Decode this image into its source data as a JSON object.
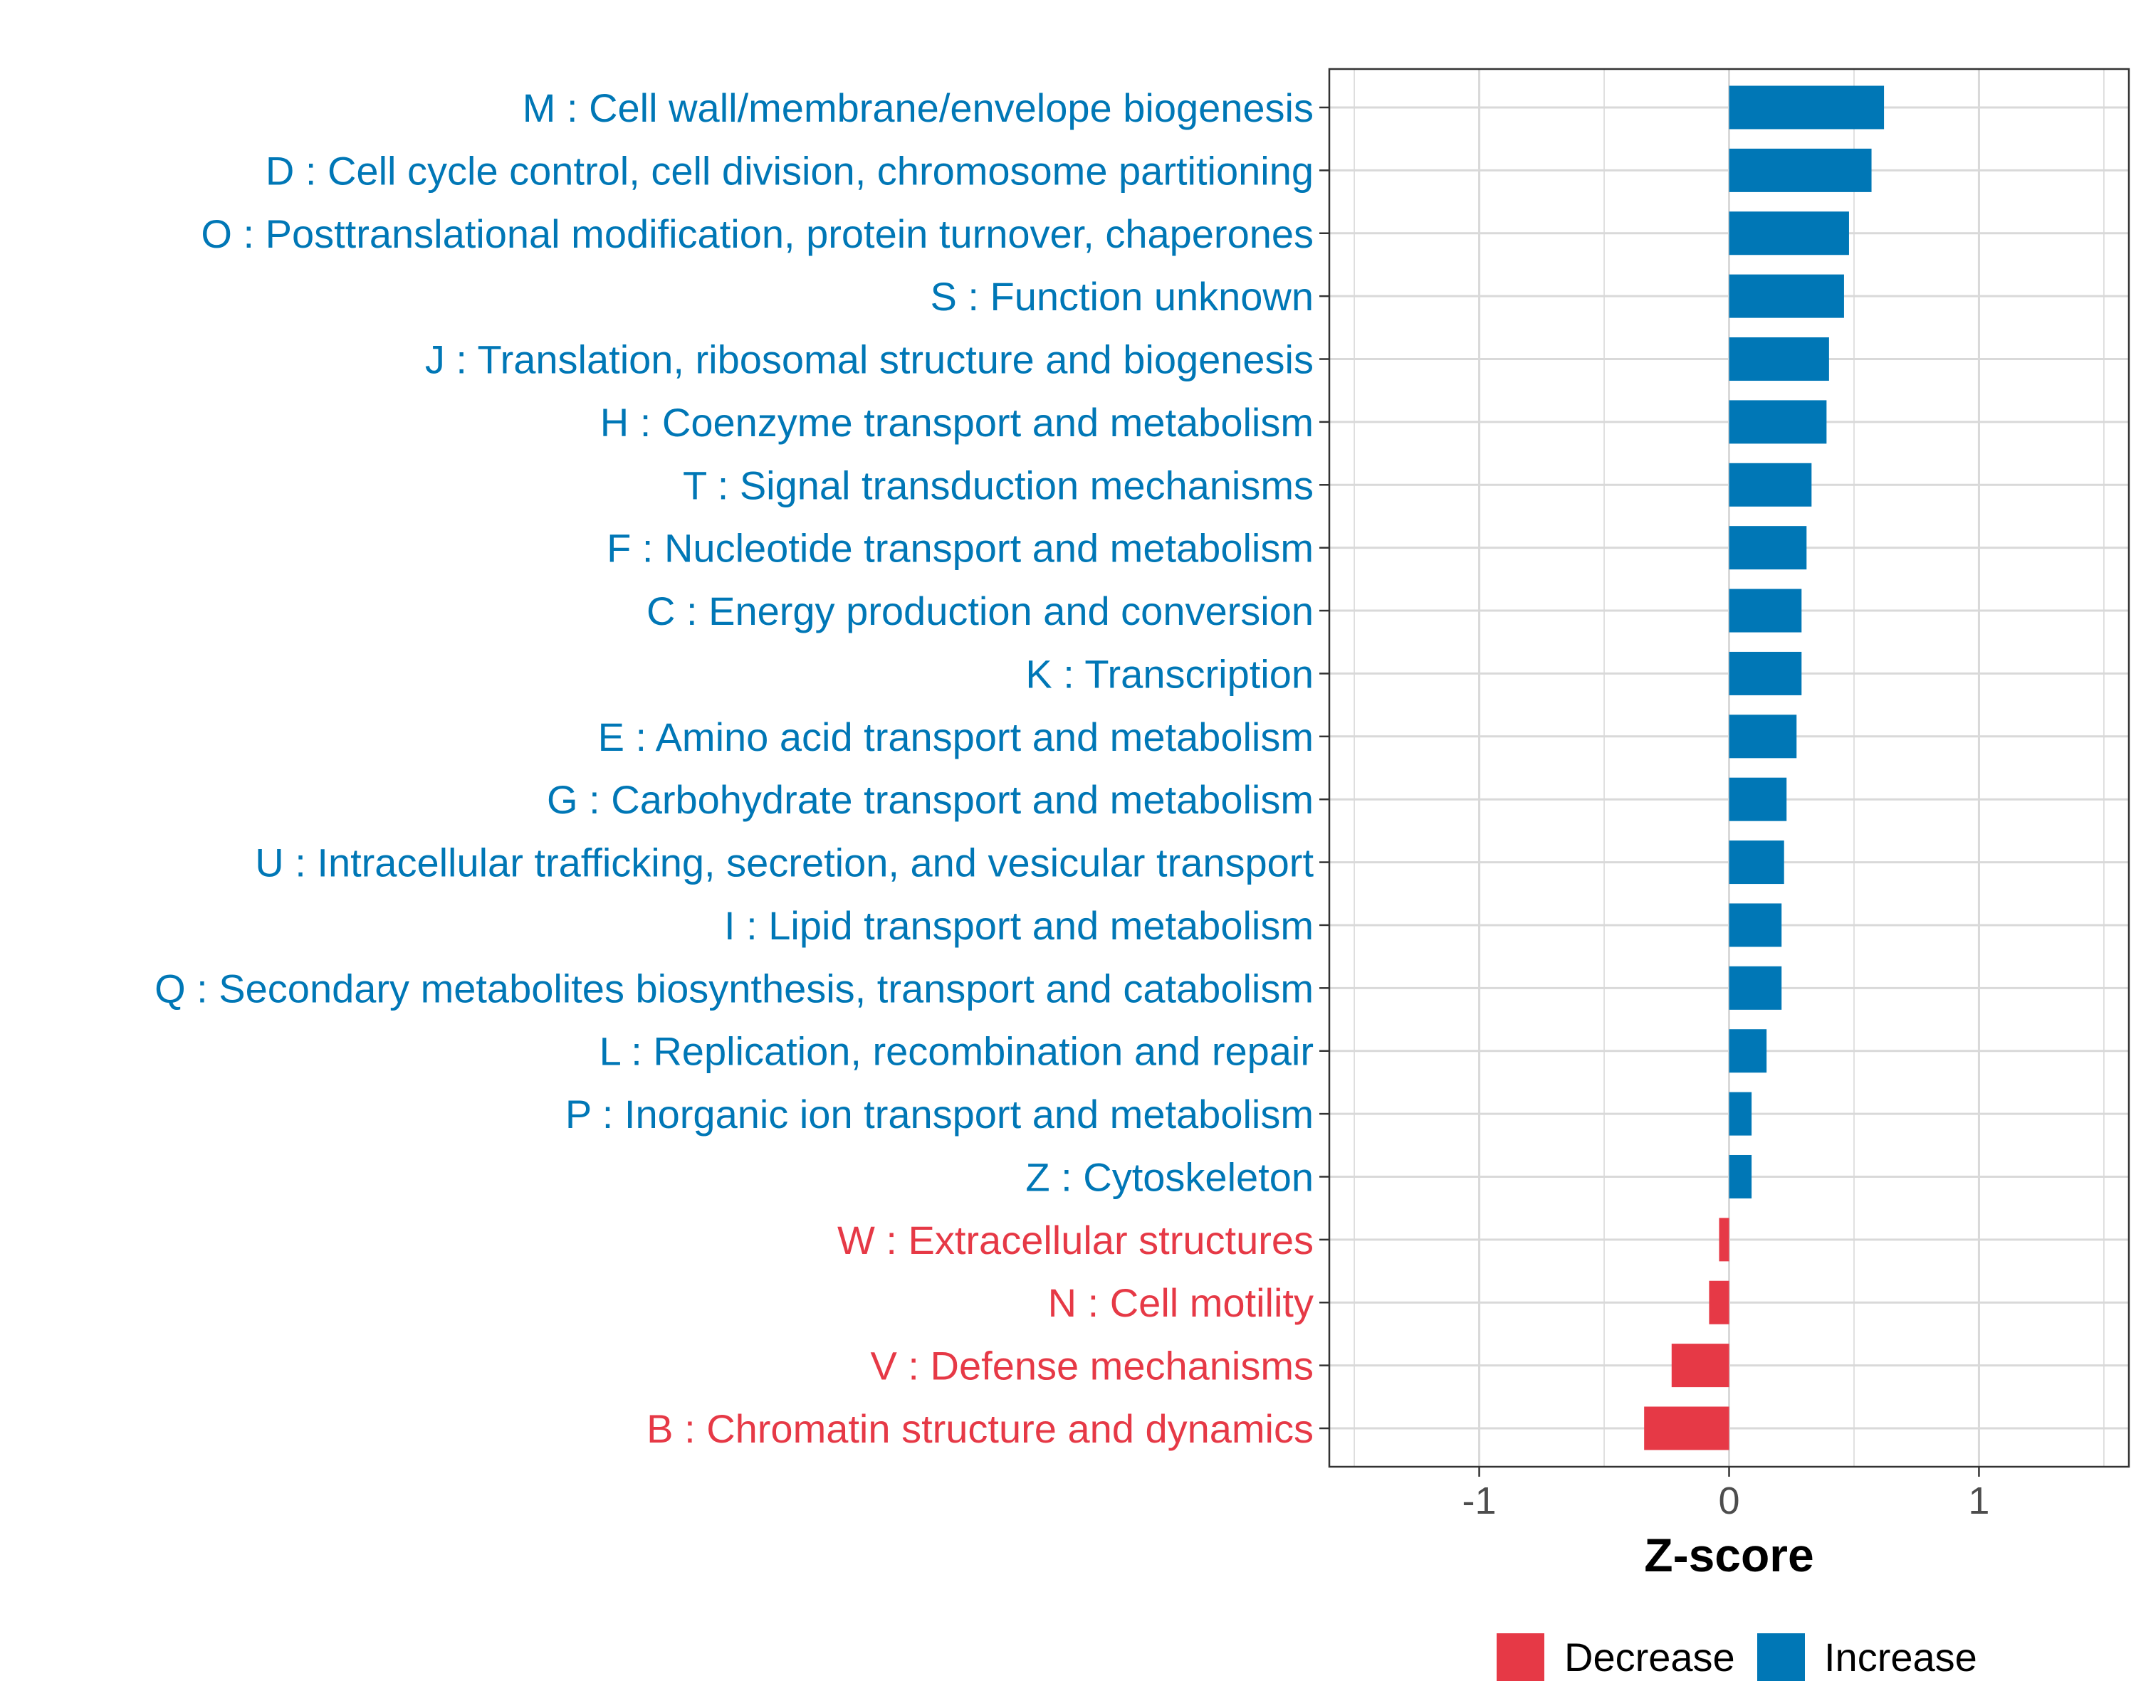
{
  "colors": {
    "increase": "#0077b6",
    "decrease": "#e63946",
    "grid": "#d9d9d9",
    "panel_border": "#333333",
    "tick_text": "#4d4d4d"
  },
  "chart_data": {
    "type": "bar",
    "orientation": "horizontal",
    "title": "",
    "xlabel": "Z-score",
    "ylabel": "",
    "xlim": [
      -1.6,
      1.6
    ],
    "xticks": [
      -1,
      0,
      1
    ],
    "xtick_labels": [
      "-1",
      "0",
      "1"
    ],
    "grid": true,
    "legend_position": "bottom",
    "legend": [
      {
        "name": "Decrease",
        "color": "#e63946"
      },
      {
        "name": "Increase",
        "color": "#0077b6"
      }
    ],
    "categories": [
      "M : Cell wall/membrane/envelope biogenesis",
      "D : Cell cycle control, cell division, chromosome partitioning",
      "O : Posttranslational modification, protein turnover, chaperones",
      "S : Function unknown",
      "J : Translation, ribosomal structure and biogenesis",
      "H : Coenzyme transport and metabolism",
      "T : Signal transduction mechanisms",
      "F : Nucleotide transport and metabolism",
      "C : Energy production and conversion",
      "K : Transcription",
      "E : Amino acid transport and metabolism",
      "G : Carbohydrate transport and metabolism",
      "U : Intracellular trafficking, secretion, and vesicular transport",
      "I : Lipid transport and metabolism",
      "Q : Secondary metabolites biosynthesis, transport and catabolism",
      "L : Replication, recombination and repair",
      "P : Inorganic ion transport and metabolism",
      "Z : Cytoskeleton",
      "W : Extracellular structures",
      "N : Cell motility",
      "V : Defense mechanisms",
      "B : Chromatin structure and dynamics"
    ],
    "values": [
      0.62,
      0.57,
      0.48,
      0.46,
      0.4,
      0.39,
      0.33,
      0.31,
      0.29,
      0.29,
      0.27,
      0.23,
      0.22,
      0.21,
      0.21,
      0.15,
      0.09,
      0.09,
      -0.04,
      -0.08,
      -0.23,
      -0.34
    ],
    "groups": [
      "Increase",
      "Increase",
      "Increase",
      "Increase",
      "Increase",
      "Increase",
      "Increase",
      "Increase",
      "Increase",
      "Increase",
      "Increase",
      "Increase",
      "Increase",
      "Increase",
      "Increase",
      "Increase",
      "Increase",
      "Increase",
      "Decrease",
      "Decrease",
      "Decrease",
      "Decrease"
    ]
  }
}
